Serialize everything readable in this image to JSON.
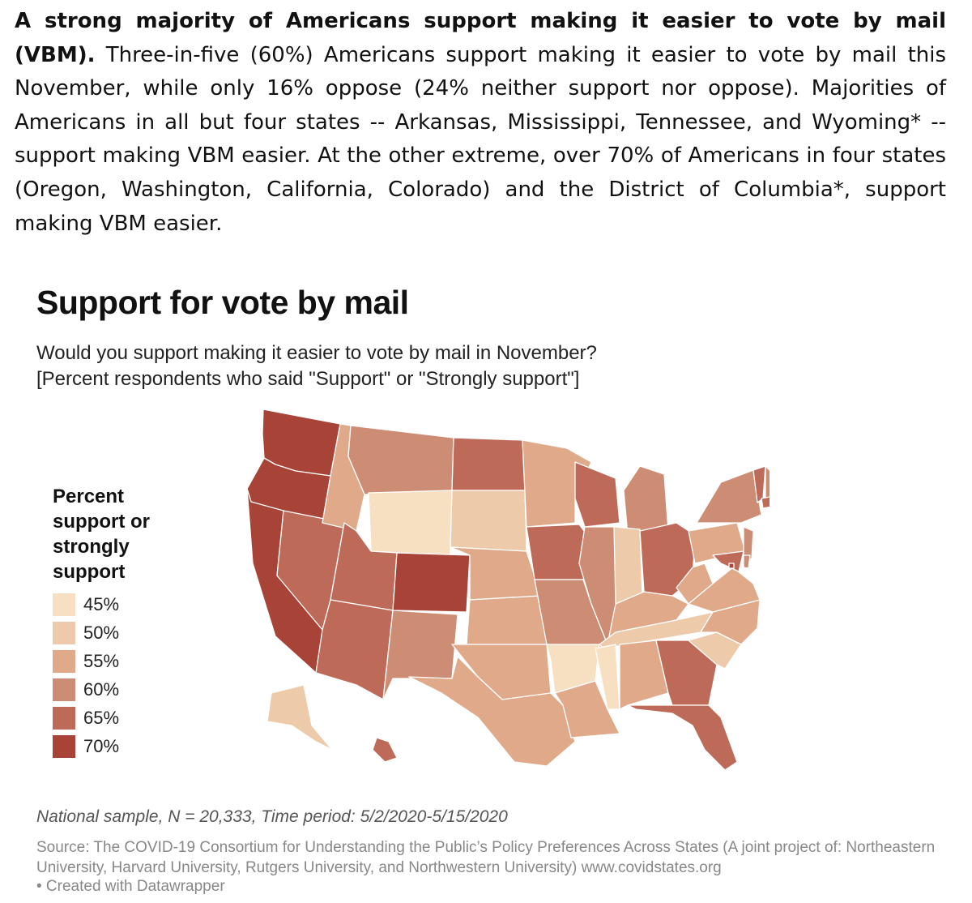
{
  "intro": {
    "bold": "A strong majority of Americans support making it easier to vote by mail (VBM).",
    "body": "Three-in-five (60%) Americans support making it easier to vote by mail this November, while only 16% oppose (24% neither support nor oppose). Majorities of Americans in all but four states -- Arkansas, Mississippi, Tennessee, and Wyoming* -- support making VBM easier. At the other extreme, over 70% of Americans in four states (Oregon, Washington, California, Colorado) and the District of Columbia*, support making VBM easier."
  },
  "chart": {
    "title": "Support for vote by mail",
    "subtitle_line1": "Would you support making it easier to vote by mail in November?",
    "subtitle_line2": "[Percent respondents who said \"Support\" or \"Strongly support\"]"
  },
  "legend": {
    "title": "Percent support or strongly support",
    "items": [
      {
        "label": "45%",
        "color": "#f7e0c1"
      },
      {
        "label": "50%",
        "color": "#edcaa9"
      },
      {
        "label": "55%",
        "color": "#dfa98a"
      },
      {
        "label": "60%",
        "color": "#cd8c74"
      },
      {
        "label": "65%",
        "color": "#bd6a58"
      },
      {
        "label": "70%",
        "color": "#a84337"
      }
    ]
  },
  "footnote": "National sample, N = 20,333, Time period: 5/2/2020-5/15/2020",
  "source": "Source: The COVID-19 Consortium for Understanding the Public’s Policy Preferences Across States (A joint project of: Northeastern University, Harvard University, Rutgers University, and Northwestern University) www.covidstates.org",
  "credit": "• Created with Datawrapper",
  "chart_data": {
    "type": "choropleth",
    "title": "Support for vote by mail",
    "unit": "percent support or strongly support",
    "bins": [
      45,
      50,
      55,
      60,
      65,
      70
    ],
    "states": [
      {
        "name": "WA",
        "value": 70
      },
      {
        "name": "OR",
        "value": 70
      },
      {
        "name": "CA",
        "value": 70
      },
      {
        "name": "NV",
        "value": 65
      },
      {
        "name": "ID",
        "value": 55
      },
      {
        "name": "MT",
        "value": 60
      },
      {
        "name": "WY",
        "value": 45
      },
      {
        "name": "UT",
        "value": 65
      },
      {
        "name": "CO",
        "value": 70
      },
      {
        "name": "AZ",
        "value": 65
      },
      {
        "name": "NM",
        "value": 60
      },
      {
        "name": "ND",
        "value": 65
      },
      {
        "name": "SD",
        "value": 50
      },
      {
        "name": "NE",
        "value": 55
      },
      {
        "name": "KS",
        "value": 55
      },
      {
        "name": "OK",
        "value": 55
      },
      {
        "name": "TX",
        "value": 55
      },
      {
        "name": "MN",
        "value": 55
      },
      {
        "name": "IA",
        "value": 65
      },
      {
        "name": "MO",
        "value": 60
      },
      {
        "name": "AR",
        "value": 45
      },
      {
        "name": "LA",
        "value": 55
      },
      {
        "name": "WI",
        "value": 65
      },
      {
        "name": "IL",
        "value": 60
      },
      {
        "name": "MI",
        "value": 60
      },
      {
        "name": "IN",
        "value": 50
      },
      {
        "name": "OH",
        "value": 65
      },
      {
        "name": "KY",
        "value": 55
      },
      {
        "name": "TN",
        "value": 50
      },
      {
        "name": "MS",
        "value": 45
      },
      {
        "name": "AL",
        "value": 55
      },
      {
        "name": "GA",
        "value": 65
      },
      {
        "name": "FL",
        "value": 65
      },
      {
        "name": "SC",
        "value": 50
      },
      {
        "name": "NC",
        "value": 55
      },
      {
        "name": "VA",
        "value": 55
      },
      {
        "name": "WV",
        "value": 55
      },
      {
        "name": "PA",
        "value": 55
      },
      {
        "name": "NY",
        "value": 60
      },
      {
        "name": "ME",
        "value": 60
      },
      {
        "name": "VT",
        "value": 65
      },
      {
        "name": "NH",
        "value": 60
      },
      {
        "name": "MA",
        "value": 65
      },
      {
        "name": "NJ",
        "value": 60
      },
      {
        "name": "MD",
        "value": 65
      },
      {
        "name": "DE",
        "value": 60
      },
      {
        "name": "DC",
        "value": 70
      },
      {
        "name": "AK",
        "value": 50
      },
      {
        "name": "HI",
        "value": 65
      }
    ]
  }
}
